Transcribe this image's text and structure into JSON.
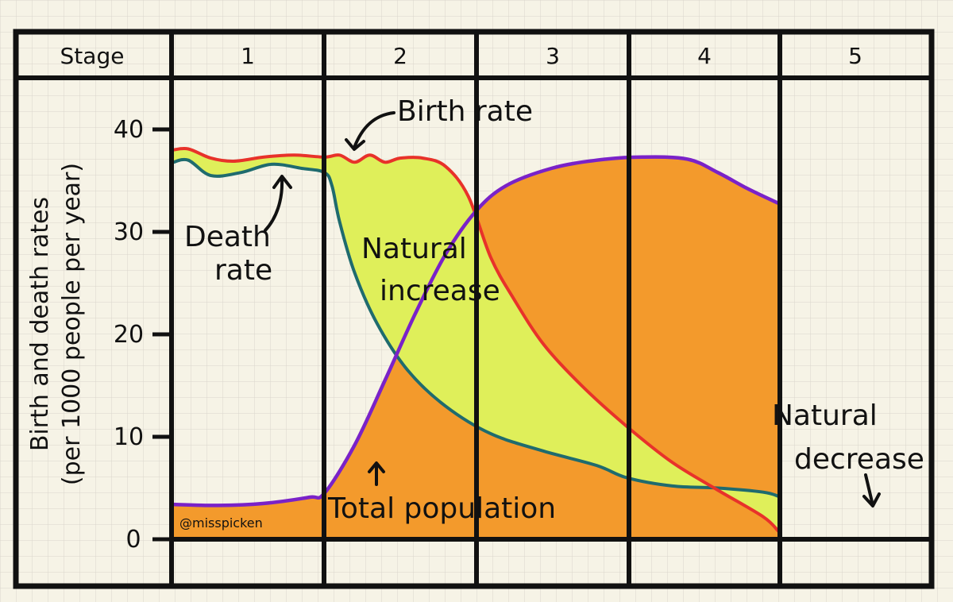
{
  "chart_data": {
    "type": "line",
    "title": "",
    "ylabel_line1": "Birth and death rates",
    "ylabel_line2": "(per 1000 people per year)",
    "ylim": [
      0,
      40
    ],
    "yticks": [
      0,
      10,
      20,
      30,
      40
    ],
    "stage_header": "Stage",
    "stages": [
      "1",
      "2",
      "3",
      "4",
      "5"
    ],
    "series": [
      {
        "name": "Birth rate",
        "color": "#e8322a",
        "x": [
          0,
          0.1,
          0.25,
          0.4,
          0.6,
          0.8,
          1.0,
          1.1,
          1.2,
          1.3,
          1.4,
          1.5,
          1.65,
          1.8,
          1.95,
          2.1,
          2.25,
          2.45,
          2.7,
          3.0,
          3.3,
          3.6,
          3.9,
          4.0
        ],
        "values": [
          38.0,
          38.1,
          37.2,
          36.9,
          37.3,
          37.5,
          37.3,
          37.5,
          36.8,
          37.5,
          36.8,
          37.2,
          37.2,
          36.4,
          33.5,
          27.5,
          23.5,
          19.0,
          15.0,
          11.0,
          7.5,
          4.8,
          2.2,
          0.8
        ]
      },
      {
        "name": "Death rate",
        "color": "#1f6b6e",
        "x": [
          0,
          0.1,
          0.25,
          0.45,
          0.65,
          0.85,
          1.0,
          1.05,
          1.1,
          1.2,
          1.35,
          1.55,
          1.8,
          2.1,
          2.45,
          2.8,
          3.0,
          3.3,
          3.6,
          3.9,
          4.0
        ],
        "values": [
          36.8,
          37.0,
          35.5,
          35.8,
          36.6,
          36.2,
          35.8,
          34.5,
          31.0,
          26.0,
          21.0,
          16.5,
          13.0,
          10.3,
          8.6,
          7.2,
          6.0,
          5.2,
          5.0,
          4.6,
          4.2
        ]
      },
      {
        "name": "Total population",
        "color": "#7a22c8",
        "x": [
          0,
          0.3,
          0.6,
          0.9,
          1.0,
          1.2,
          1.4,
          1.6,
          1.8,
          2.0,
          2.2,
          2.5,
          2.8,
          3.1,
          3.4,
          3.6,
          3.8,
          4.0
        ],
        "values": [
          3.4,
          3.3,
          3.5,
          4.1,
          4.5,
          9.2,
          15.5,
          22.0,
          27.8,
          32.0,
          34.5,
          36.2,
          37.0,
          37.3,
          37.1,
          35.8,
          34.2,
          32.8
        ]
      }
    ],
    "annotations": {
      "birth_rate": "Birth rate",
      "death_line1": "Death",
      "death_line2": "rate",
      "ni_line1": "Natural",
      "ni_line2": "increase",
      "nd_line1": "Natural",
      "nd_line2": "decrease",
      "total_population": "Total population",
      "credit": "@misspicken"
    },
    "fills": {
      "natural_increase": "#dfef5a",
      "natural_decrease": "#8dd7e6",
      "population": "#f39a2c"
    },
    "dashed_from_stage": 4
  }
}
